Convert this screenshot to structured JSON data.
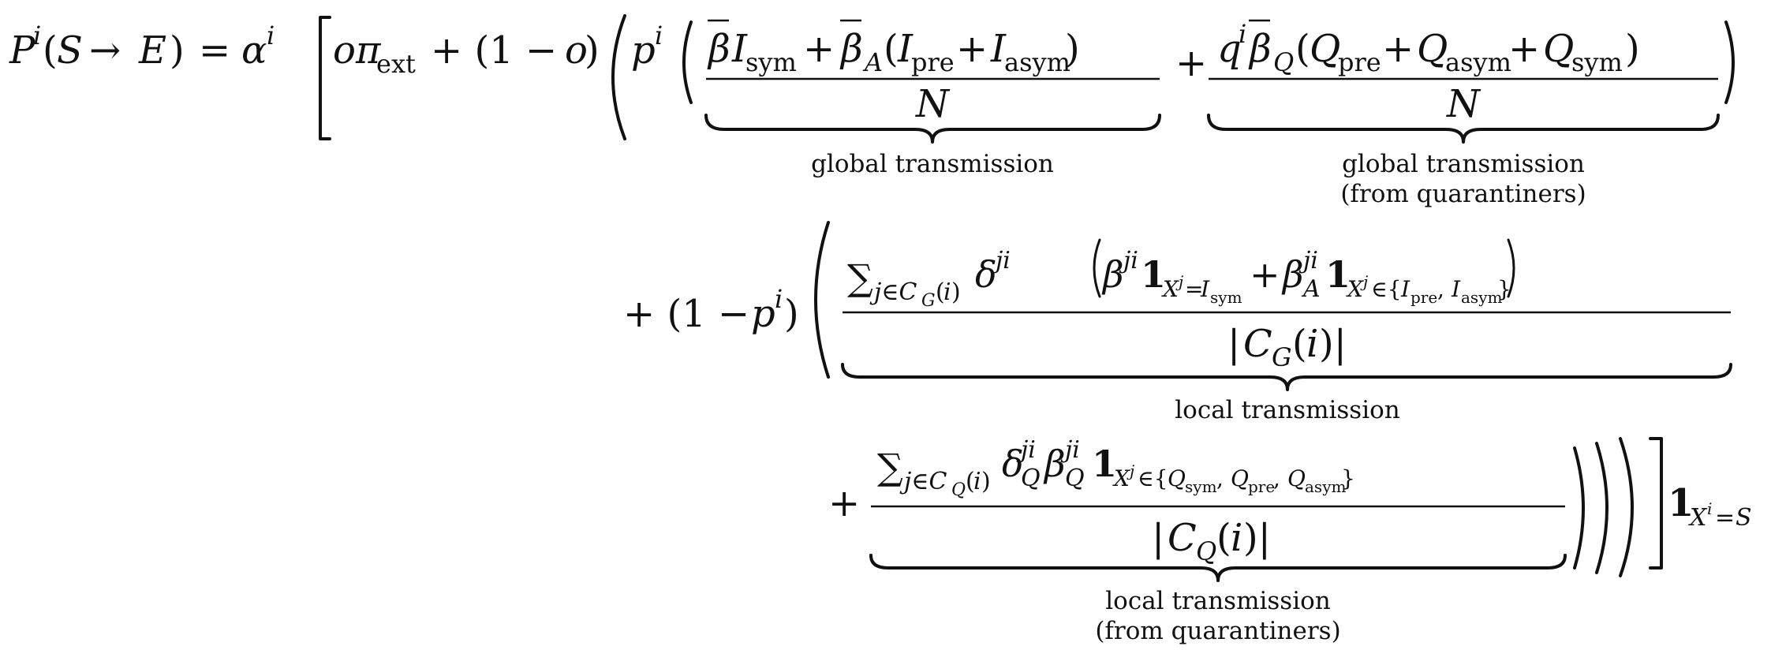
{
  "labels": {
    "global": "global transmission",
    "global_q_line1": "global transmission",
    "global_q_line2": "(from quarantiners)",
    "local": "local transmission",
    "local_q_line1": "local transmission",
    "local_q_line2": "(from quarantiners)"
  }
}
